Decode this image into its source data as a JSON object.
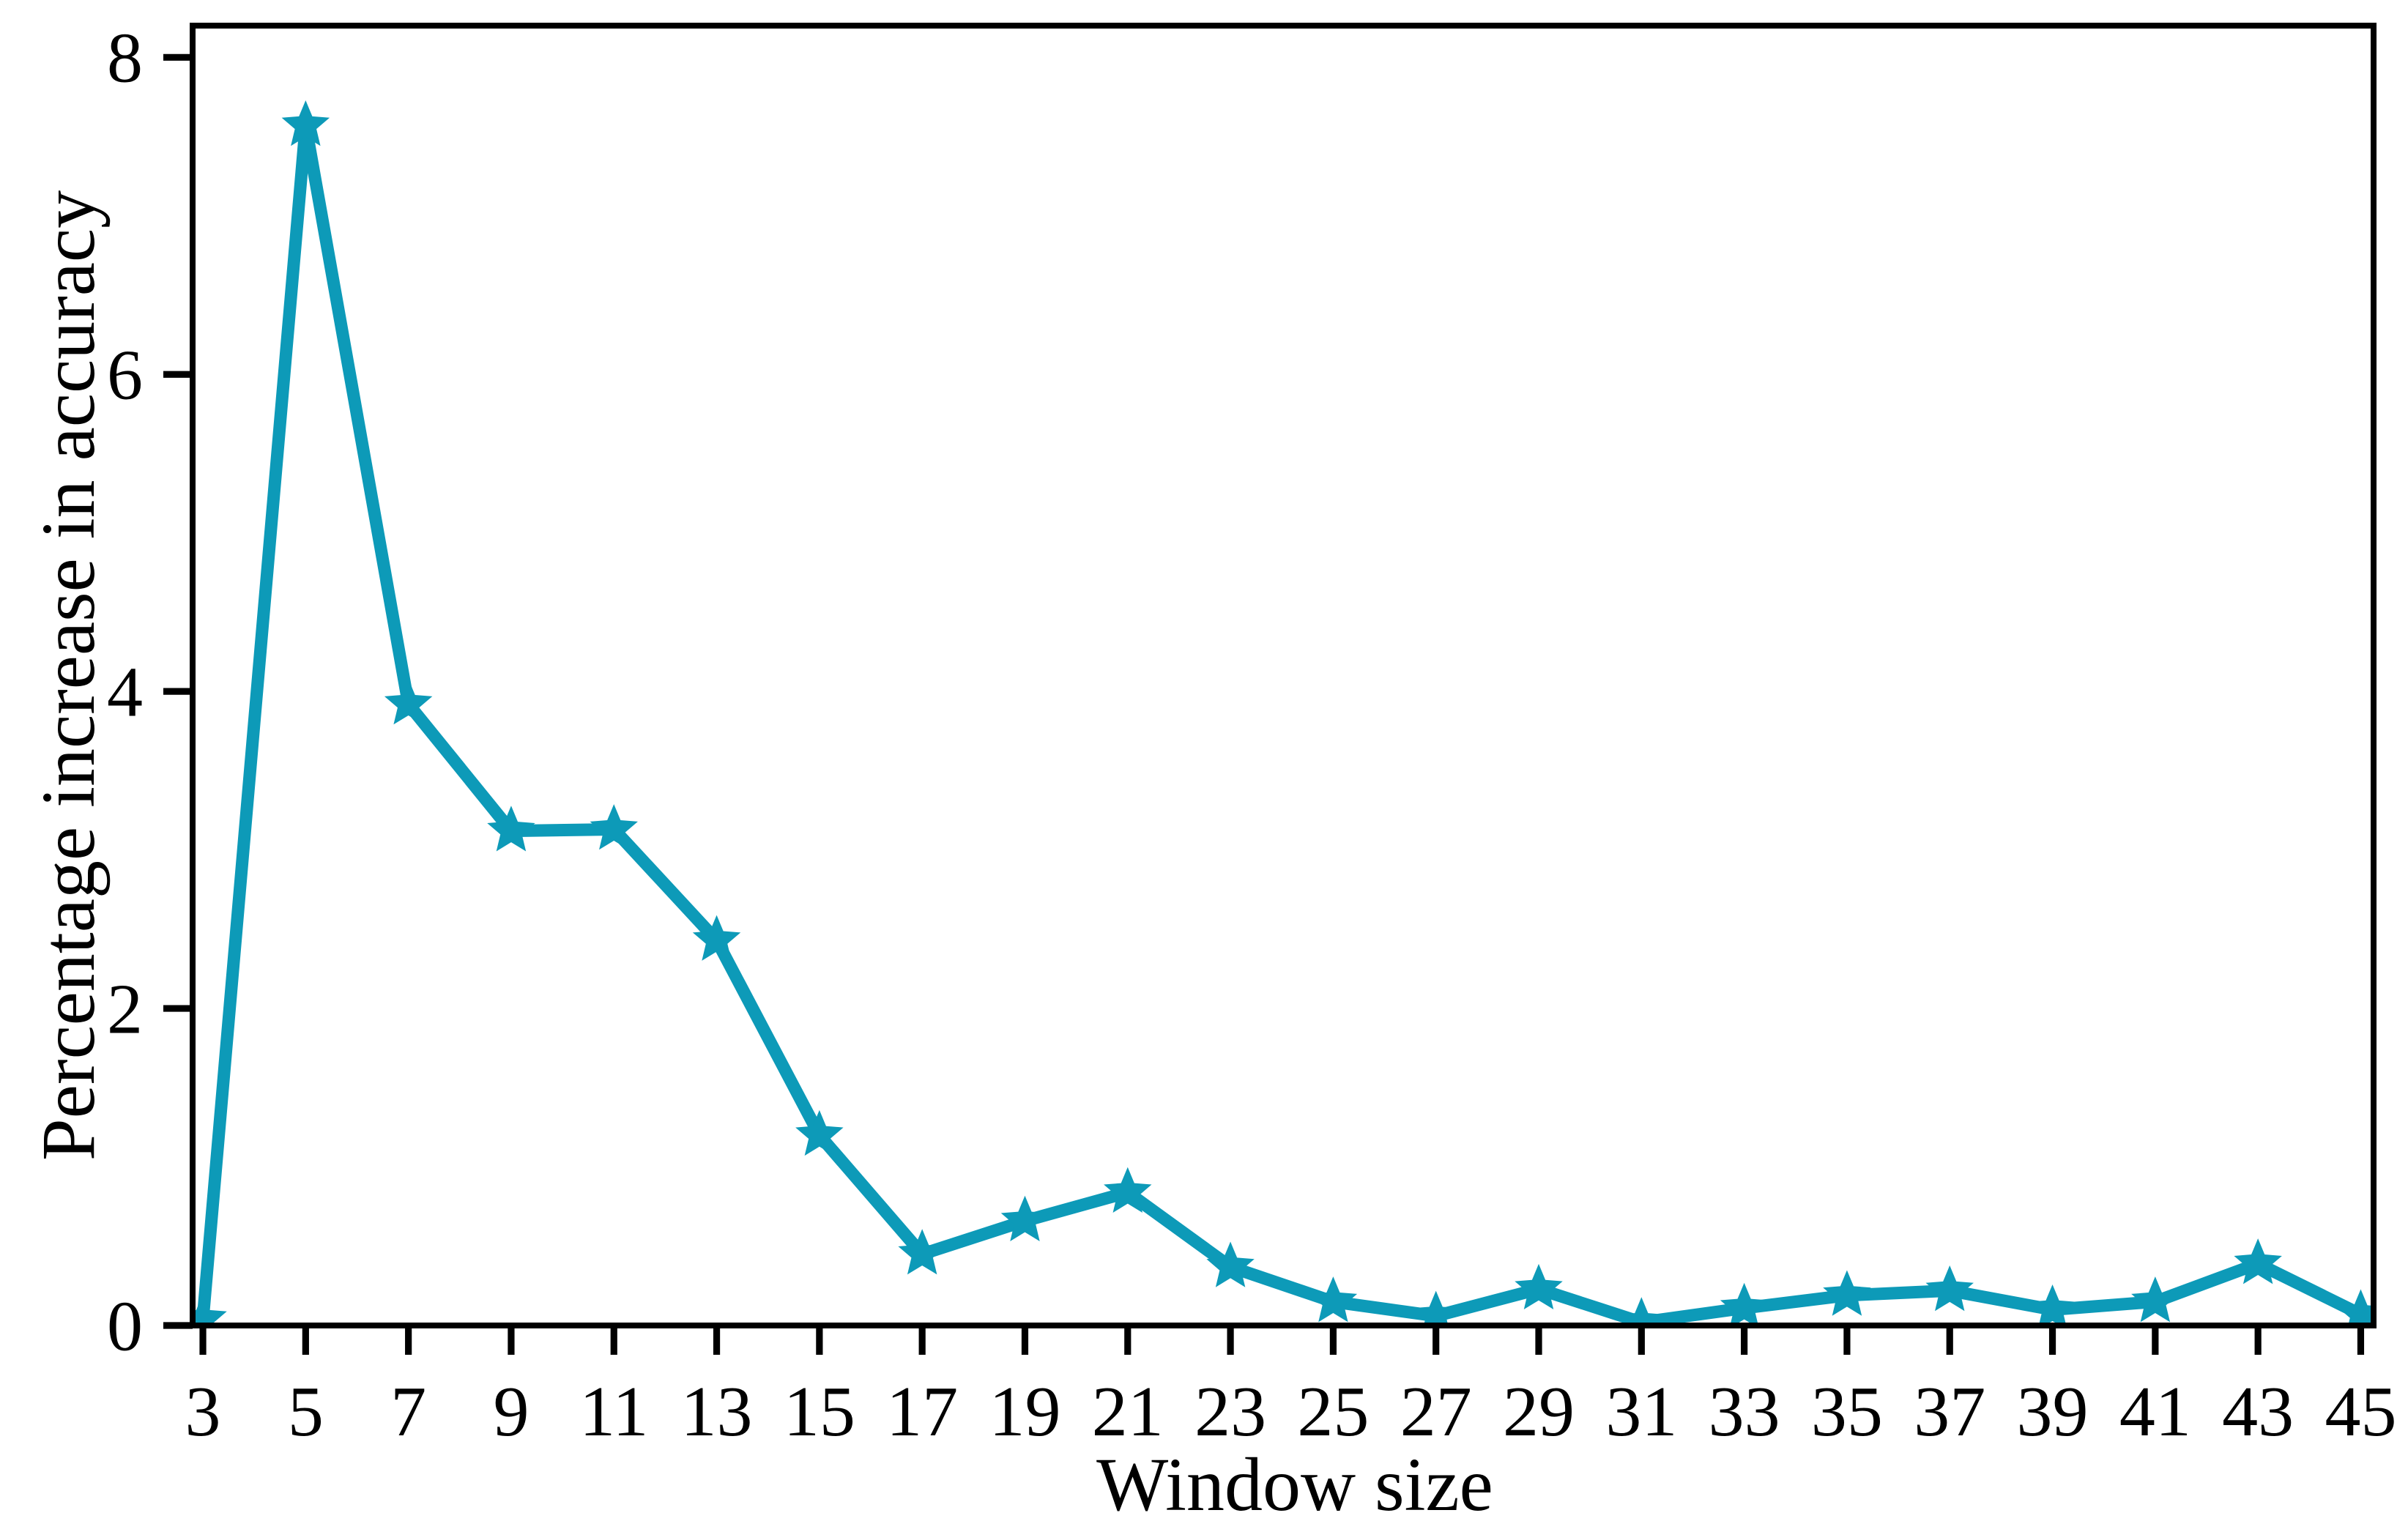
{
  "page": {
    "background": "#ffffff"
  },
  "chart_data": {
    "type": "line",
    "title": "",
    "xlabel": "Window size",
    "ylabel": "Percentage increase in accuracy",
    "x": [
      3,
      5,
      7,
      9,
      11,
      13,
      15,
      17,
      19,
      21,
      23,
      25,
      27,
      29,
      31,
      33,
      35,
      37,
      39,
      41,
      43,
      45
    ],
    "series": [
      {
        "name": "Percentage increase in accuracy",
        "marker": "star",
        "color": "#0d9ab8",
        "values": [
          0.04,
          7.57,
          3.92,
          3.12,
          3.13,
          2.43,
          1.2,
          0.45,
          0.66,
          0.84,
          0.37,
          0.15,
          0.06,
          0.23,
          0.02,
          0.11,
          0.19,
          0.22,
          0.1,
          0.15,
          0.39,
          0.07
        ]
      }
    ],
    "x_ticks": [
      3,
      5,
      7,
      9,
      11,
      13,
      15,
      17,
      19,
      21,
      23,
      25,
      27,
      29,
      31,
      33,
      35,
      37,
      39,
      41,
      43,
      45
    ],
    "y_ticks": [
      0,
      2,
      4,
      6,
      8
    ],
    "xlim": [
      2.8,
      45.25
    ],
    "ylim": [
      0,
      8.2
    ],
    "grid": false,
    "legend_position": "none",
    "axis_color": "#000000",
    "text_color": "#000000"
  }
}
